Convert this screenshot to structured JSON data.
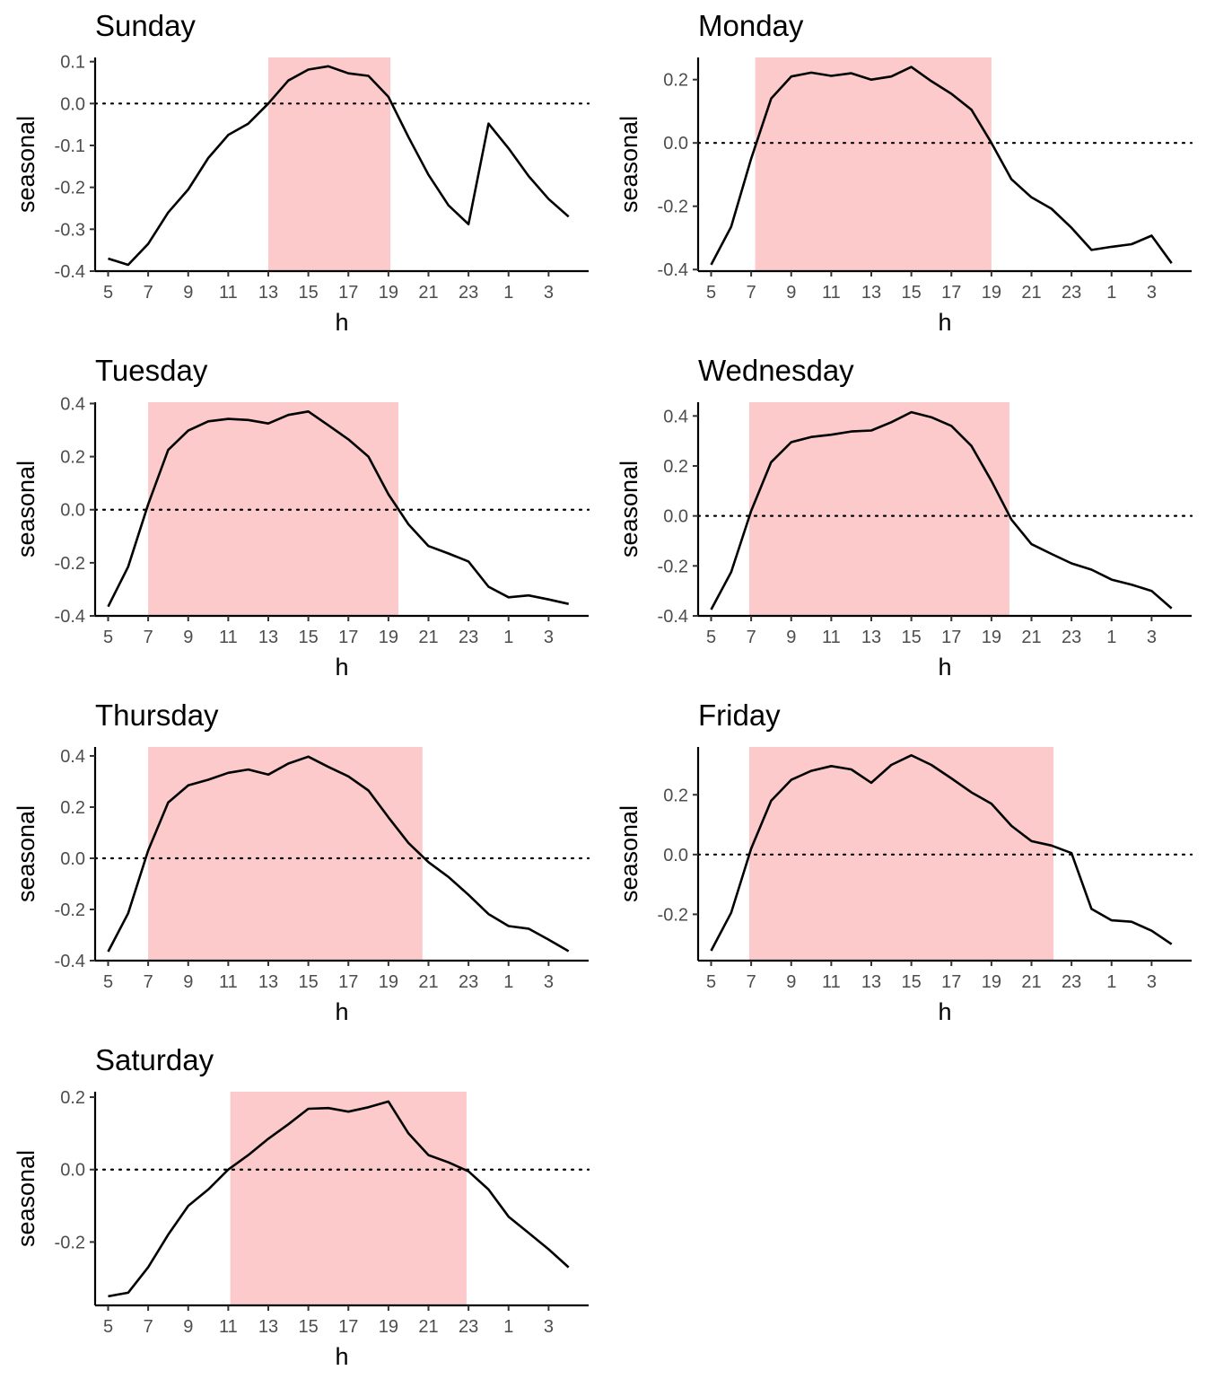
{
  "chart_data": [
    {
      "type": "line",
      "title": "Sunday",
      "xlabel": "h",
      "ylabel": "seasonal",
      "x_tick_labels": [
        "5",
        "7",
        "9",
        "11",
        "13",
        "15",
        "17",
        "19",
        "21",
        "23",
        "1",
        "3"
      ],
      "y_ticks": [
        -0.4,
        -0.3,
        -0.2,
        -0.1,
        0.0,
        0.1
      ],
      "y_tick_labels": [
        "-0.4",
        "-0.3",
        "-0.2",
        "-0.1",
        "0.0",
        "0.1"
      ],
      "ylim": [
        -0.4,
        0.11
      ],
      "reference_line": 0,
      "highlight_band": {
        "from": 13,
        "to": 19.1,
        "color": "#fccaca"
      },
      "line_color": "#000000",
      "series": [
        {
          "x": [
            5,
            6,
            7,
            8,
            9,
            10,
            11,
            12,
            13,
            14,
            15,
            16,
            17,
            18,
            19,
            20,
            21,
            22,
            23,
            24,
            25,
            26,
            27,
            28
          ],
          "values": [
            -0.37,
            -0.385,
            -0.335,
            -0.26,
            -0.205,
            -0.13,
            -0.075,
            -0.048,
            0.0,
            0.055,
            0.081,
            0.089,
            0.072,
            0.066,
            0.016,
            -0.08,
            -0.17,
            -0.243,
            -0.288,
            -0.048,
            -0.107,
            -0.173,
            -0.228,
            -0.27
          ]
        }
      ]
    },
    {
      "type": "line",
      "title": "Monday",
      "xlabel": "h",
      "ylabel": "seasonal",
      "x_tick_labels": [
        "5",
        "7",
        "9",
        "11",
        "13",
        "15",
        "17",
        "19",
        "21",
        "23",
        "1",
        "3"
      ],
      "y_ticks": [
        -0.4,
        -0.2,
        0.0,
        0.2
      ],
      "y_tick_labels": [
        "-0.4",
        "-0.2",
        "0.0",
        "0.2"
      ],
      "ylim": [
        -0.405,
        0.27
      ],
      "reference_line": 0,
      "highlight_band": {
        "from": 7.2,
        "to": 19,
        "color": "#fccaca"
      },
      "line_color": "#000000",
      "series": [
        {
          "x": [
            5,
            6,
            7,
            8,
            9,
            10,
            11,
            12,
            13,
            14,
            15,
            16,
            17,
            18,
            19,
            20,
            21,
            22,
            23,
            24,
            25,
            26,
            27,
            28
          ],
          "values": [
            -0.385,
            -0.265,
            -0.05,
            0.14,
            0.21,
            0.222,
            0.212,
            0.22,
            0.2,
            0.21,
            0.24,
            0.195,
            0.155,
            0.105,
            0.0,
            -0.115,
            -0.172,
            -0.208,
            -0.268,
            -0.338,
            -0.328,
            -0.32,
            -0.293,
            -0.38
          ]
        }
      ]
    },
    {
      "type": "line",
      "title": "Tuesday",
      "xlabel": "h",
      "ylabel": "seasonal",
      "x_tick_labels": [
        "5",
        "7",
        "9",
        "11",
        "13",
        "15",
        "17",
        "19",
        "21",
        "23",
        "1",
        "3"
      ],
      "y_ticks": [
        -0.4,
        -0.2,
        0.0,
        0.2,
        0.4
      ],
      "y_tick_labels": [
        "-0.4",
        "-0.2",
        "0.0",
        "0.2",
        "0.4"
      ],
      "ylim": [
        -0.4,
        0.405
      ],
      "reference_line": 0,
      "highlight_band": {
        "from": 7,
        "to": 19.5,
        "color": "#fccaca"
      },
      "line_color": "#000000",
      "series": [
        {
          "x": [
            5,
            6,
            7,
            8,
            9,
            10,
            11,
            12,
            13,
            14,
            15,
            16,
            17,
            18,
            19,
            20,
            21,
            22,
            23,
            24,
            25,
            26,
            27,
            28
          ],
          "values": [
            -0.365,
            -0.215,
            0.02,
            0.225,
            0.298,
            0.333,
            0.342,
            0.338,
            0.325,
            0.357,
            0.37,
            0.318,
            0.265,
            0.2,
            0.058,
            -0.055,
            -0.137,
            -0.165,
            -0.195,
            -0.29,
            -0.33,
            -0.323,
            -0.338,
            -0.355
          ]
        }
      ]
    },
    {
      "type": "line",
      "title": "Wednesday",
      "xlabel": "h",
      "ylabel": "seasonal",
      "x_tick_labels": [
        "5",
        "7",
        "9",
        "11",
        "13",
        "15",
        "17",
        "19",
        "21",
        "23",
        "1",
        "3"
      ],
      "y_ticks": [
        -0.4,
        -0.2,
        0.0,
        0.2,
        0.4
      ],
      "y_tick_labels": [
        "-0.4",
        "-0.2",
        "0.0",
        "0.2",
        "0.4"
      ],
      "ylim": [
        -0.4,
        0.455
      ],
      "reference_line": 0,
      "highlight_band": {
        "from": 6.9,
        "to": 19.9,
        "color": "#fccaca"
      },
      "line_color": "#000000",
      "series": [
        {
          "x": [
            5,
            6,
            7,
            8,
            9,
            10,
            11,
            12,
            13,
            14,
            15,
            16,
            17,
            18,
            19,
            20,
            21,
            22,
            23,
            24,
            25,
            26,
            27,
            28
          ],
          "values": [
            -0.375,
            -0.225,
            0.02,
            0.215,
            0.295,
            0.316,
            0.325,
            0.338,
            0.342,
            0.375,
            0.415,
            0.395,
            0.36,
            0.28,
            0.14,
            -0.015,
            -0.113,
            -0.152,
            -0.19,
            -0.215,
            -0.255,
            -0.275,
            -0.3,
            -0.37
          ]
        }
      ]
    },
    {
      "type": "line",
      "title": "Thursday",
      "xlabel": "h",
      "ylabel": "seasonal",
      "x_tick_labels": [
        "5",
        "7",
        "9",
        "11",
        "13",
        "15",
        "17",
        "19",
        "21",
        "23",
        "1",
        "3"
      ],
      "y_ticks": [
        -0.4,
        -0.2,
        0.0,
        0.2,
        0.4
      ],
      "y_tick_labels": [
        "-0.4",
        "-0.2",
        "0.0",
        "0.2",
        "0.4"
      ],
      "ylim": [
        -0.4,
        0.435
      ],
      "reference_line": 0,
      "highlight_band": {
        "from": 7,
        "to": 20.7,
        "color": "#fccaca"
      },
      "line_color": "#000000",
      "series": [
        {
          "x": [
            5,
            6,
            7,
            8,
            9,
            10,
            11,
            12,
            13,
            14,
            15,
            16,
            17,
            18,
            19,
            20,
            21,
            22,
            23,
            24,
            25,
            26,
            27,
            28
          ],
          "values": [
            -0.365,
            -0.215,
            0.03,
            0.218,
            0.285,
            0.307,
            0.334,
            0.347,
            0.327,
            0.37,
            0.397,
            0.357,
            0.32,
            0.265,
            0.16,
            0.06,
            -0.015,
            -0.073,
            -0.143,
            -0.218,
            -0.265,
            -0.275,
            -0.318,
            -0.363
          ]
        }
      ]
    },
    {
      "type": "line",
      "title": "Friday",
      "xlabel": "h",
      "ylabel": "seasonal",
      "x_tick_labels": [
        "5",
        "7",
        "9",
        "11",
        "13",
        "15",
        "17",
        "19",
        "21",
        "23",
        "1",
        "3"
      ],
      "y_ticks": [
        -0.2,
        0.0,
        0.2
      ],
      "y_tick_labels": [
        "-0.2",
        "0.0",
        "0.2"
      ],
      "ylim": [
        -0.355,
        0.36
      ],
      "reference_line": 0,
      "highlight_band": {
        "from": 6.9,
        "to": 22.1,
        "color": "#fccaca"
      },
      "line_color": "#000000",
      "series": [
        {
          "x": [
            5,
            6,
            7,
            8,
            9,
            10,
            11,
            12,
            13,
            14,
            15,
            16,
            17,
            18,
            19,
            20,
            21,
            22,
            23,
            24,
            25,
            26,
            27,
            28
          ],
          "values": [
            -0.322,
            -0.195,
            0.02,
            0.18,
            0.25,
            0.28,
            0.296,
            0.285,
            0.24,
            0.3,
            0.332,
            0.3,
            0.255,
            0.208,
            0.17,
            0.096,
            0.045,
            0.03,
            0.005,
            -0.182,
            -0.22,
            -0.225,
            -0.255,
            -0.3
          ]
        }
      ]
    },
    {
      "type": "line",
      "title": "Saturday",
      "xlabel": "h",
      "ylabel": "seasonal",
      "x_tick_labels": [
        "5",
        "7",
        "9",
        "11",
        "13",
        "15",
        "17",
        "19",
        "21",
        "23",
        "1",
        "3"
      ],
      "y_ticks": [
        -0.2,
        0.0,
        0.2
      ],
      "y_tick_labels": [
        "-0.2",
        "0.0",
        "0.2"
      ],
      "ylim": [
        -0.375,
        0.215
      ],
      "reference_line": 0,
      "highlight_band": {
        "from": 11.1,
        "to": 22.9,
        "color": "#fccaca"
      },
      "line_color": "#000000",
      "series": [
        {
          "x": [
            5,
            6,
            7,
            8,
            9,
            10,
            11,
            12,
            13,
            14,
            15,
            16,
            17,
            18,
            19,
            20,
            21,
            22,
            23,
            24,
            25,
            26,
            27,
            28
          ],
          "values": [
            -0.35,
            -0.34,
            -0.27,
            -0.18,
            -0.1,
            -0.055,
            0.0,
            0.04,
            0.085,
            0.125,
            0.168,
            0.17,
            0.16,
            0.172,
            0.188,
            0.1,
            0.04,
            0.02,
            -0.005,
            -0.055,
            -0.13,
            -0.175,
            -0.22,
            -0.27
          ]
        }
      ]
    }
  ]
}
